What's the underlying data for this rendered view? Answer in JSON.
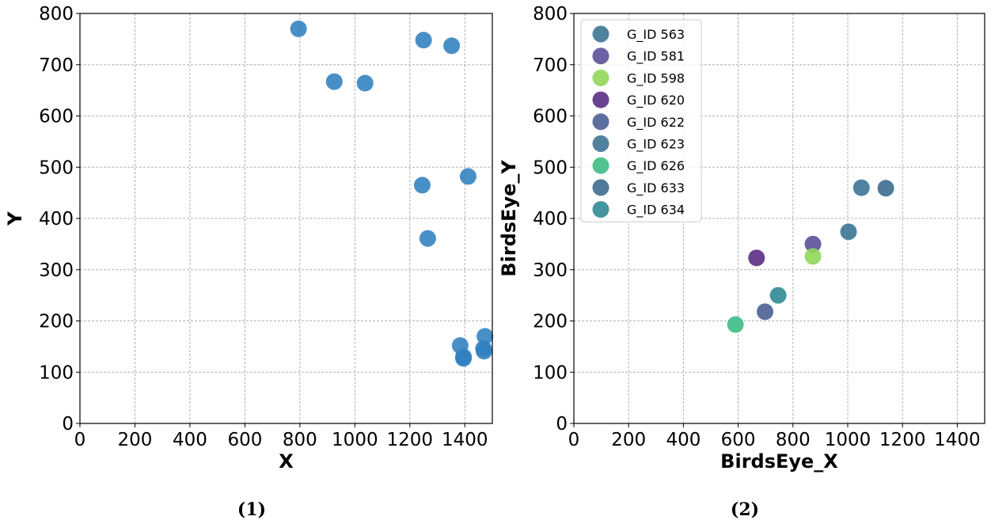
{
  "chart_data": [
    {
      "type": "scatter",
      "title": "",
      "xlabel": "X",
      "ylabel": "Y",
      "xlim": [
        0,
        1500
      ],
      "ylim": [
        0,
        800
      ],
      "xticks": [
        0,
        200,
        400,
        600,
        800,
        1000,
        1200,
        1400
      ],
      "yticks": [
        0,
        100,
        200,
        300,
        400,
        500,
        600,
        700,
        800
      ],
      "grid": true,
      "caption": "(1)",
      "color": "#2f7fbf",
      "points": [
        {
          "x": 795,
          "y": 770
        },
        {
          "x": 925,
          "y": 667
        },
        {
          "x": 1037,
          "y": 664
        },
        {
          "x": 1250,
          "y": 748
        },
        {
          "x": 1352,
          "y": 737
        },
        {
          "x": 1245,
          "y": 465
        },
        {
          "x": 1412,
          "y": 482
        },
        {
          "x": 1265,
          "y": 361
        },
        {
          "x": 1383,
          "y": 152
        },
        {
          "x": 1395,
          "y": 130
        },
        {
          "x": 1395,
          "y": 127
        },
        {
          "x": 1473,
          "y": 170
        },
        {
          "x": 1468,
          "y": 146
        },
        {
          "x": 1470,
          "y": 141
        }
      ]
    },
    {
      "type": "scatter",
      "title": "",
      "xlabel": "BirdsEye_X",
      "ylabel": "BirdsEye_Y",
      "xlim": [
        0,
        1500
      ],
      "ylim": [
        0,
        800
      ],
      "xticks": [
        0,
        200,
        400,
        600,
        800,
        1000,
        1200,
        1400
      ],
      "yticks": [
        0,
        100,
        200,
        300,
        400,
        500,
        600,
        700,
        800
      ],
      "grid": true,
      "caption": "(2)",
      "legend_position": "top-left",
      "series": [
        {
          "name": "G_ID 563",
          "color": "#3b7595",
          "points": [
            {
              "x": 1003,
              "y": 374
            }
          ]
        },
        {
          "name": "G_ID 581",
          "color": "#5a519a",
          "points": [
            {
              "x": 873,
              "y": 350
            }
          ]
        },
        {
          "name": "G_ID 598",
          "color": "#8fd75a",
          "points": [
            {
              "x": 873,
              "y": 326
            }
          ]
        },
        {
          "name": "G_ID 620",
          "color": "#5a2d83",
          "points": [
            {
              "x": 667,
              "y": 323
            }
          ]
        },
        {
          "name": "G_ID 622",
          "color": "#4a5f95",
          "points": [
            {
              "x": 698,
              "y": 218
            }
          ]
        },
        {
          "name": "G_ID 623",
          "color": "#3e7596",
          "points": [
            {
              "x": 1050,
              "y": 460
            }
          ]
        },
        {
          "name": "G_ID 626",
          "color": "#3ebc84",
          "points": [
            {
              "x": 590,
              "y": 193
            }
          ]
        },
        {
          "name": "G_ID 633",
          "color": "#3c6c8e",
          "points": [
            {
              "x": 1139,
              "y": 459
            }
          ]
        },
        {
          "name": "G_ID 634",
          "color": "#2f8b95",
          "points": [
            {
              "x": 746,
              "y": 250
            }
          ]
        }
      ]
    }
  ]
}
